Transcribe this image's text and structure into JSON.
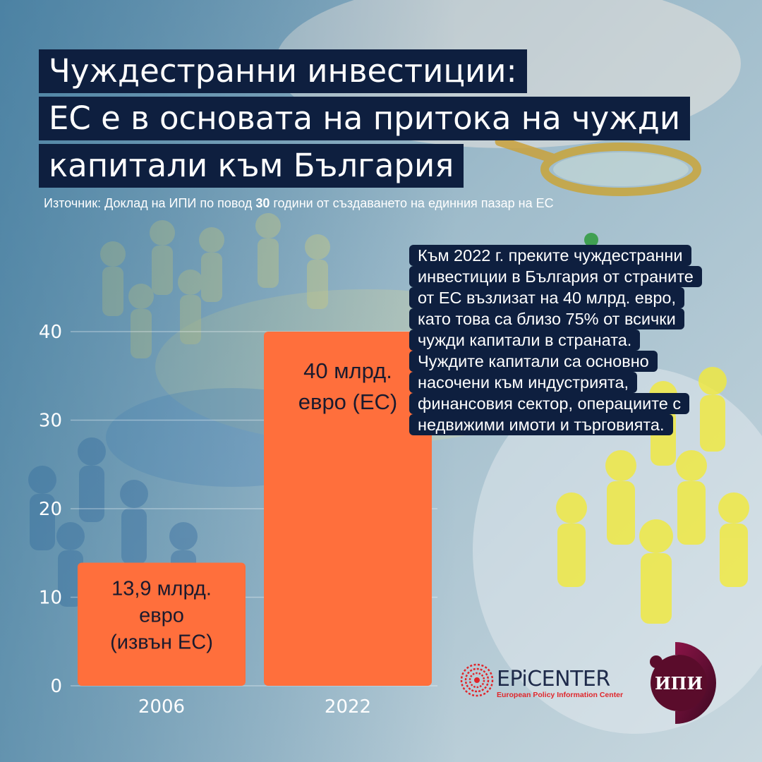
{
  "title": {
    "lines": [
      "Чуждестранни инвестиции:",
      "ЕС е в основата на притока на чужди",
      "капитали към България"
    ]
  },
  "source": {
    "prefix": "Източник: Доклад на ИПИ по повод ",
    "bold": "30",
    "suffix": " години от създаването на единния пазар на ЕС"
  },
  "callout": {
    "lines": [
      "Към 2022 г. преките чуждестранни",
      "инвестиции в България от страните",
      "от ЕС възлизат на 40 млрд. евро,",
      "като това са близо 75% от всички",
      "чужди капитали в страната.",
      "Чуждите капитали са основно",
      "насочени към индустрията,",
      "финансовия сектор, операциите с",
      "недвижими имоти и търговията."
    ]
  },
  "chart_data": {
    "type": "bar",
    "categories": [
      "2006",
      "2022"
    ],
    "values": [
      13.9,
      40
    ],
    "data_labels": [
      [
        "13,9 млрд.",
        "евро",
        "(извън ЕС)"
      ],
      [
        "40 млрд.",
        "евро (ЕС)"
      ]
    ],
    "yticks": [
      "0",
      "10",
      "20",
      "30",
      "40"
    ],
    "ylim": [
      0,
      40
    ],
    "title": "",
    "xlabel": "",
    "ylabel": "",
    "grid": true,
    "bar_color": "#ff6f3c"
  },
  "logos": {
    "epicenter_name": "EPiCENTER",
    "epicenter_sub": "European Policy Information Center",
    "ipi_name": "ИПИ"
  },
  "colors": {
    "title_bg": "#0e1f3f",
    "bar": "#ff6f3c",
    "logo_red": "#e0262b",
    "logo_maroon": "#5a0c2b"
  }
}
